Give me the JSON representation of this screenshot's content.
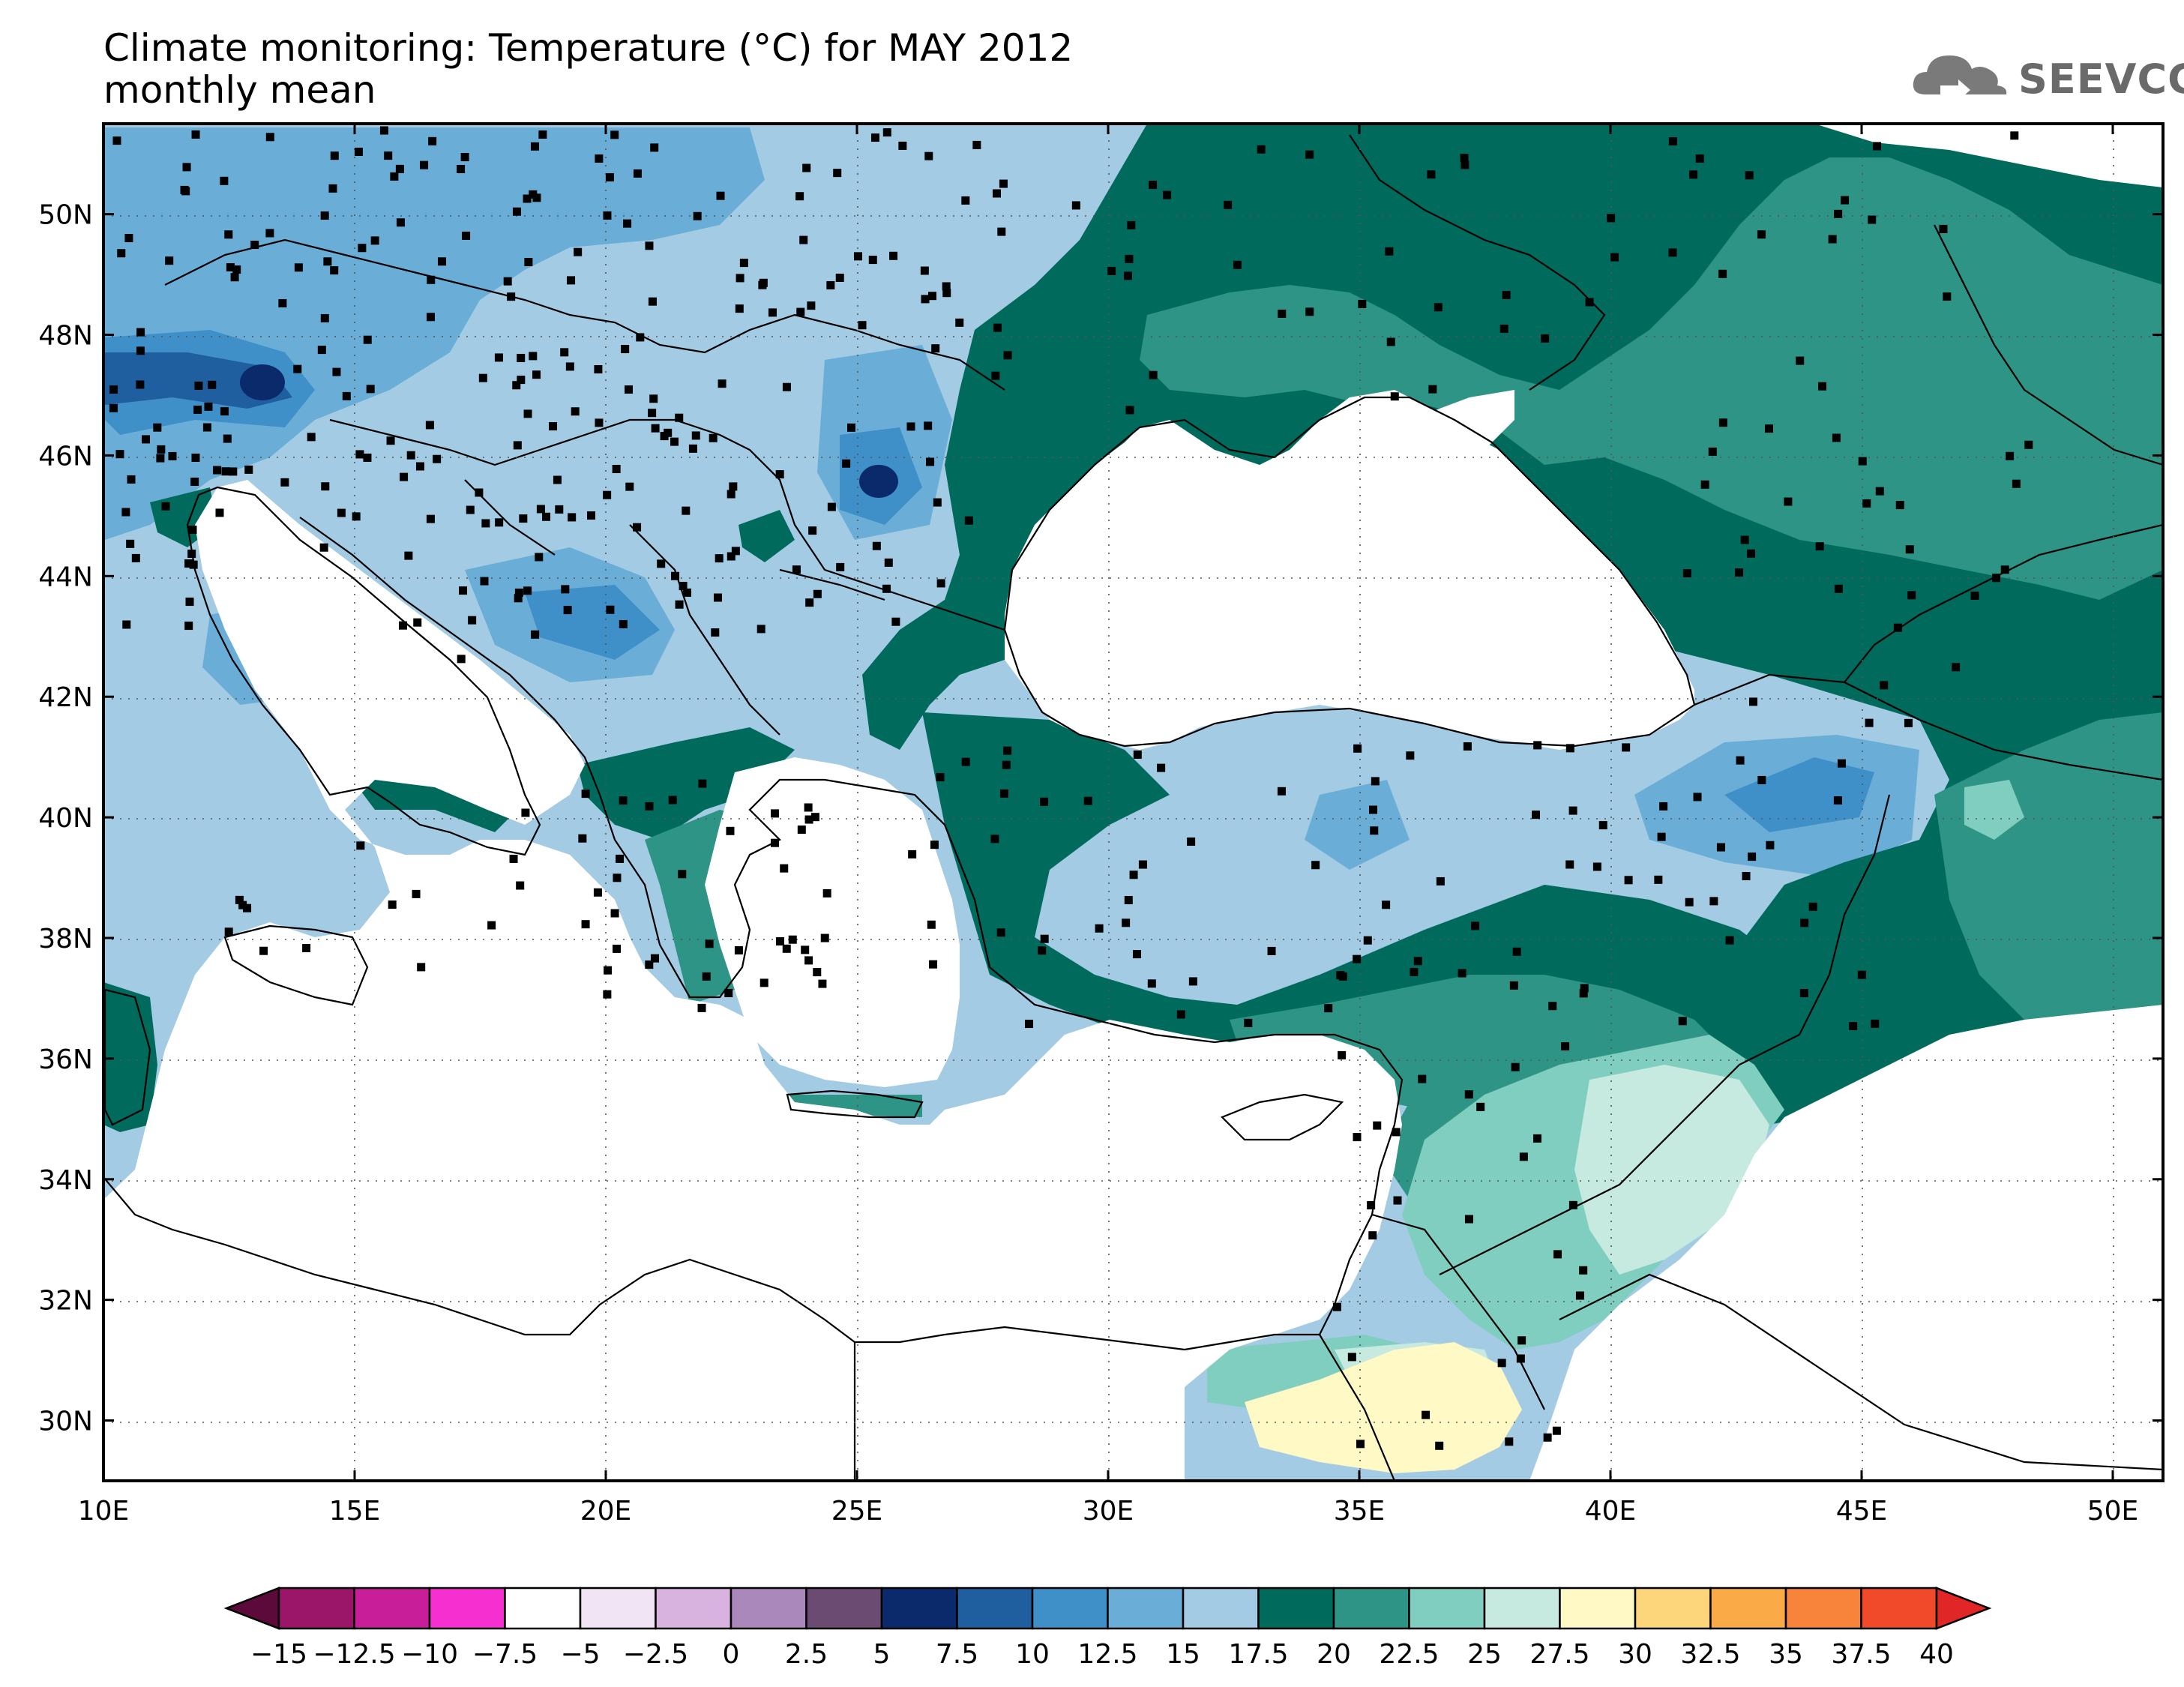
{
  "header": {
    "title": "Climate monitoring: Temperature (°C) for MAY 2012",
    "subtitle": "monthly mean",
    "logo_text": "SEEVCCC"
  },
  "map": {
    "lon_range": [
      10,
      51
    ],
    "lat_range": [
      29,
      51.5
    ],
    "x_ticks": [
      "10E",
      "15E",
      "20E",
      "25E",
      "30E",
      "35E",
      "40E",
      "45E",
      "50E"
    ],
    "x_tick_values": [
      10,
      15,
      20,
      25,
      30,
      35,
      40,
      45,
      50
    ],
    "y_ticks": [
      "30N",
      "32N",
      "34N",
      "36N",
      "38N",
      "40N",
      "42N",
      "44N",
      "46N",
      "48N",
      "50N"
    ],
    "y_tick_values": [
      30,
      32,
      34,
      36,
      38,
      40,
      42,
      44,
      46,
      48,
      50
    ],
    "grid": "dotted"
  },
  "colorbar": {
    "labels": [
      "−15",
      "−12.5",
      "−10",
      "−7.5",
      "−5",
      "−2.5",
      "0",
      "2.5",
      "5",
      "7.5",
      "10",
      "12.5",
      "15",
      "17.5",
      "20",
      "22.5",
      "25",
      "27.5",
      "30",
      "32.5",
      "35",
      "37.5",
      "40"
    ],
    "colors": [
      "#5b0a3a",
      "#9b1669",
      "#c81e9a",
      "#f52fd0",
      "#ffffff",
      "#f0e4f5",
      "#d9b3e0",
      "#aa88bb",
      "#6b4b72",
      "#0a2a6b",
      "#1f5fa0",
      "#3f8fc8",
      "#6aaed8",
      "#a3cbe3",
      "#006a5c",
      "#2e9485",
      "#80cebf",
      "#c6e9e0",
      "#fff9c6",
      "#fdd57a",
      "#fbaa48",
      "#f7843a",
      "#f04a2a",
      "#e02626"
    ]
  },
  "colors": {
    "land": "#ffffff",
    "sea": "#ffffff",
    "station": "#000000",
    "border": "#000000"
  }
}
